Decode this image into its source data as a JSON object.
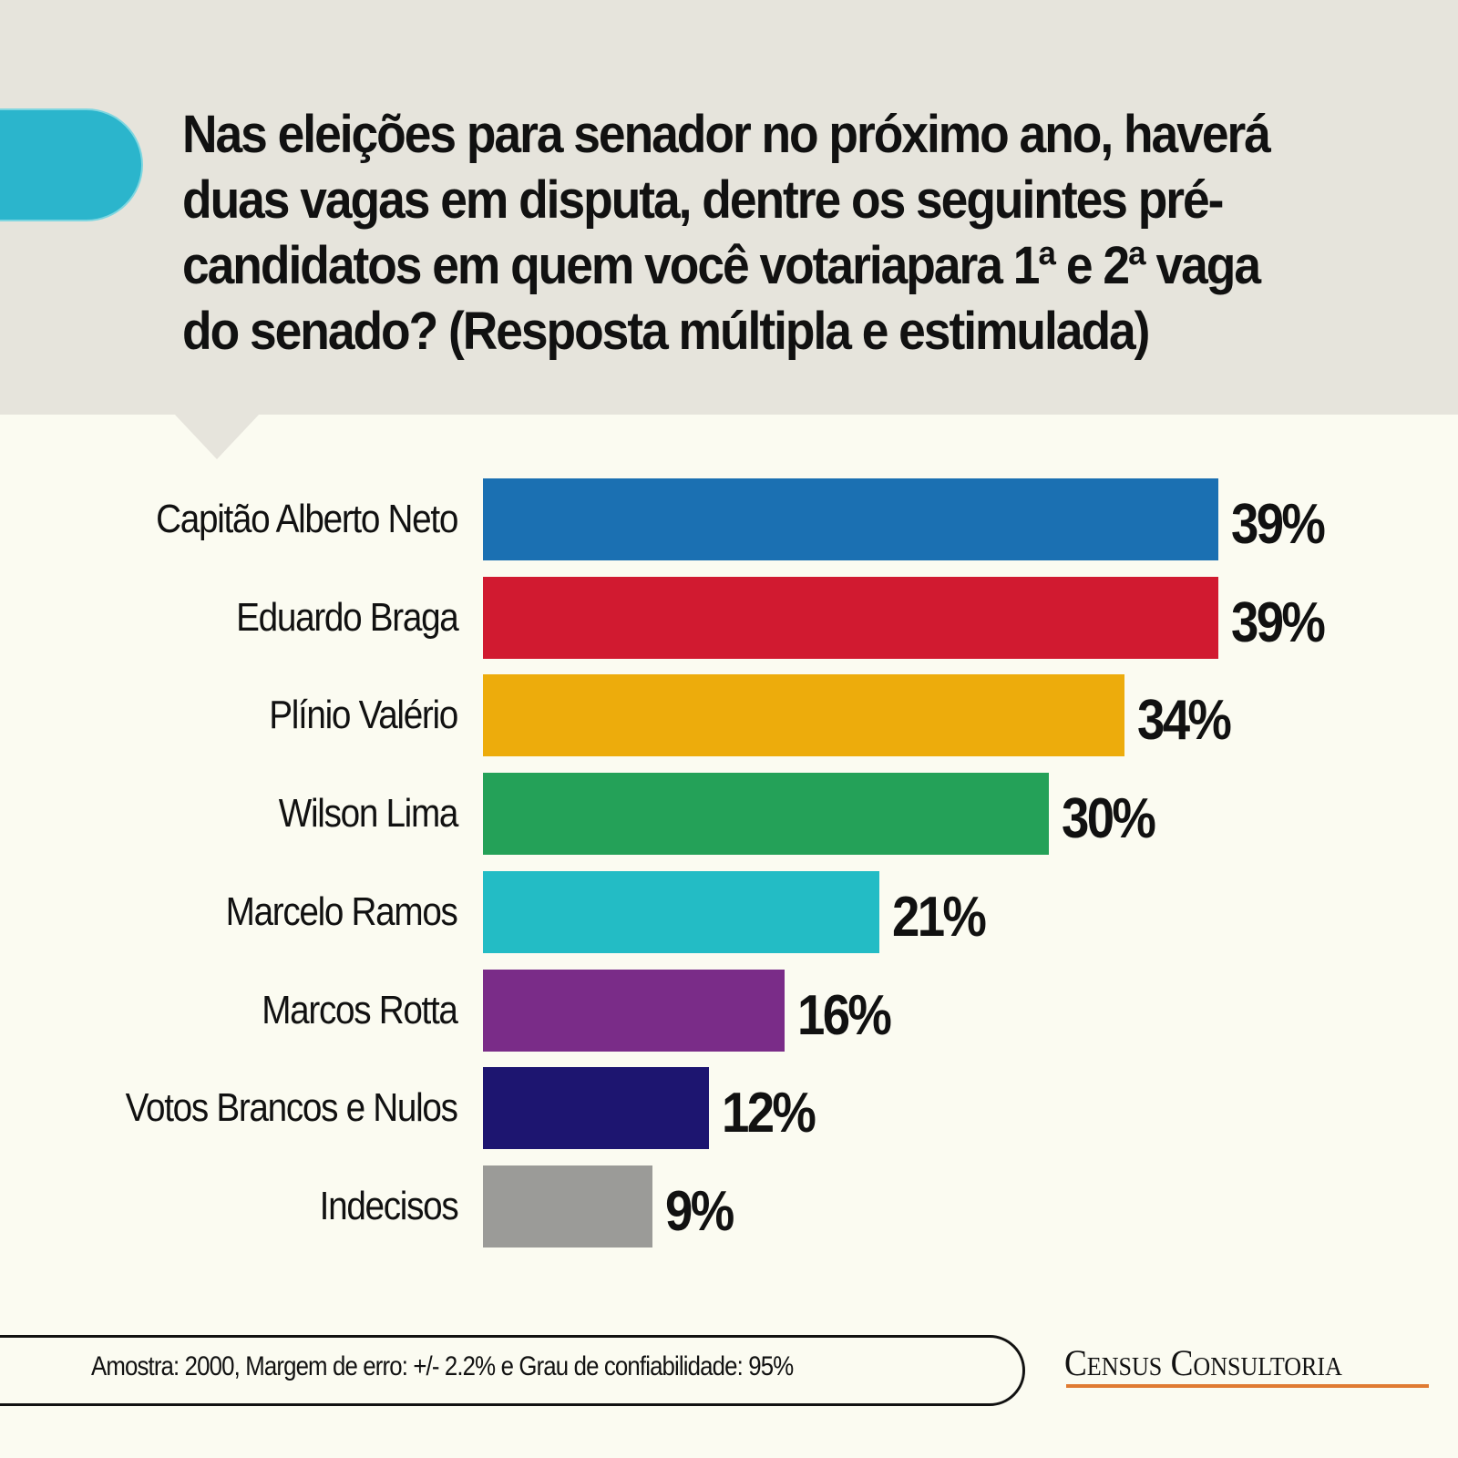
{
  "header": {
    "question": "Nas eleições para senador no próximo ano, haverá duas vagas em disputa, dentre os seguintes pré-candidatos em quem você votariapara 1ª e 2ª vaga do senado? (Resposta múltipla e estimulada)",
    "accent_color": "#2bb5cc"
  },
  "rows": [
    {
      "label": "Capitão Alberto Neto",
      "value": "39%",
      "color": "#1b70b2"
    },
    {
      "label": "Eduardo Braga",
      "value": "39%",
      "color": "#d11a30"
    },
    {
      "label": "Plínio Valério",
      "value": "34%",
      "color": "#edac0c"
    },
    {
      "label": "Wilson Lima",
      "value": "30%",
      "color": "#24a158"
    },
    {
      "label": "Marcelo Ramos",
      "value": "21%",
      "color": "#23bcc5"
    },
    {
      "label": "Marcos Rotta",
      "value": "16%",
      "color": "#7a2c88"
    },
    {
      "label": "Votos Brancos e Nulos",
      "value": "12%",
      "color": "#1d1570"
    },
    {
      "label": "Indecisos",
      "value": "9%",
      "color": "#9b9b98"
    }
  ],
  "footer": {
    "methodology": "Amostra: 2000, Margem de erro: +/- 2.2% e Grau de confiabilidade: 95%",
    "brand": "Census Consultoria",
    "brand_underline_color": "#e07b32"
  },
  "chart_data": {
    "type": "bar",
    "orientation": "horizontal",
    "title": "Nas eleições para senador no próximo ano, haverá duas vagas em disputa, dentre os seguintes pré-candidatos em quem você votariapara 1ª e 2ª vaga do senado? (Resposta múltipla e estimulada)",
    "categories": [
      "Capitão Alberto Neto",
      "Eduardo Braga",
      "Plínio Valério",
      "Wilson Lima",
      "Marcelo Ramos",
      "Marcos Rotta",
      "Votos Brancos e Nulos",
      "Indecisos"
    ],
    "values": [
      39,
      39,
      34,
      30,
      21,
      16,
      12,
      9
    ],
    "unit": "%",
    "colors": [
      "#1b70b2",
      "#d11a30",
      "#edac0c",
      "#24a158",
      "#23bcc5",
      "#7a2c88",
      "#1d1570",
      "#9b9b98"
    ],
    "xlabel": "",
    "ylabel": "",
    "grid": false,
    "legend": "none",
    "data_labels": true,
    "annotations": [
      "Amostra: 2000, Margem de erro: +/- 2.2% e Grau de confiabilidade: 95%",
      "Census Consultoria"
    ]
  }
}
